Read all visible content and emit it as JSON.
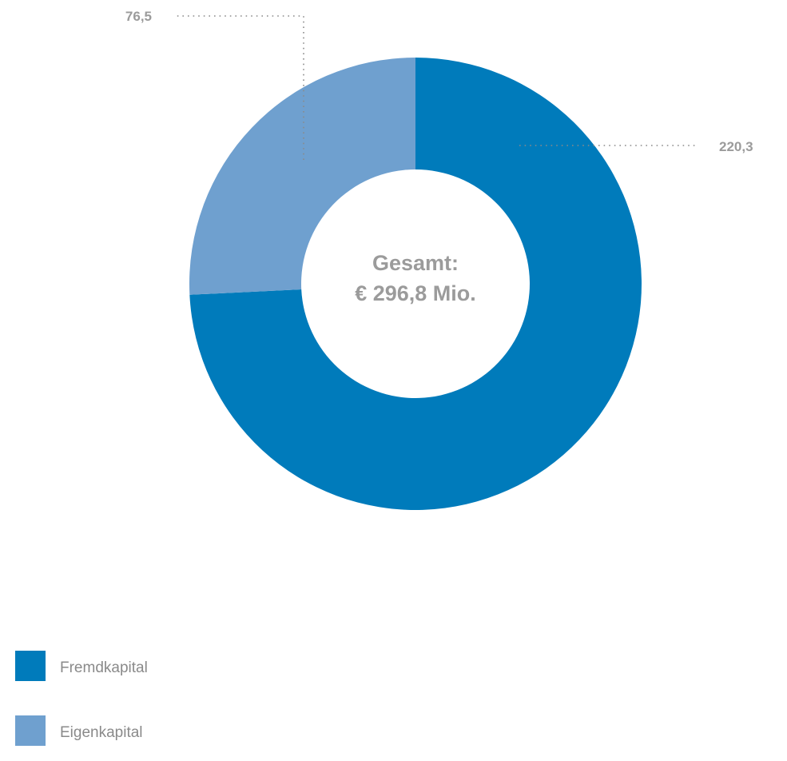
{
  "chart_data": {
    "type": "donut",
    "title": "",
    "center_label": {
      "line1": "Gesamt:",
      "line2": "€ 296,8 Mio."
    },
    "total": 296.8,
    "slices": [
      {
        "name": "Fremdkapital",
        "value": 220.3,
        "label": "220,3",
        "color": "#007bbb"
      },
      {
        "name": "Eigenkapital",
        "value": 76.5,
        "label": "76,5",
        "color": "#6fa0cf"
      }
    ],
    "legend": {
      "position": "bottom-left",
      "items": [
        {
          "label": "Fremdkapital",
          "color": "#007bbb"
        },
        {
          "label": "Eigenkapital",
          "color": "#6fa0cf"
        }
      ]
    }
  }
}
